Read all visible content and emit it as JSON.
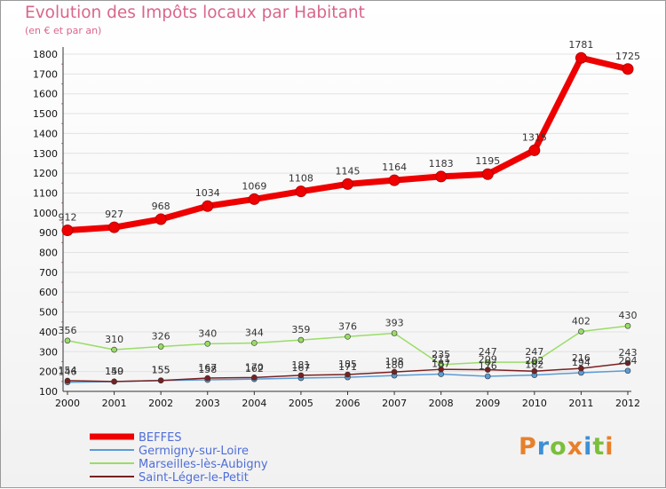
{
  "title": "Evolution des Impôts locaux par Habitant",
  "subtitle": "(en € et par an)",
  "logo": {
    "text": "Proxiti",
    "colors": [
      "#e8802a",
      "#3d8fd6",
      "#7bbf3a",
      "#e8802a",
      "#3d8fd6",
      "#7bbf3a",
      "#e8802a"
    ]
  },
  "chart_data": {
    "type": "line",
    "categories": [
      "2000",
      "2001",
      "2002",
      "2003",
      "2004",
      "2005",
      "2006",
      "2007",
      "2008",
      "2009",
      "2010",
      "2011",
      "2012"
    ],
    "yticks": [
      "100",
      "200",
      "300",
      "400",
      "500",
      "600",
      "700",
      "800",
      "900",
      "1000",
      "1100",
      "1200",
      "1300",
      "1400",
      "1500",
      "1600",
      "1700",
      "1800"
    ],
    "ylim": [
      100,
      1800
    ],
    "xlabel": "",
    "ylabel": "",
    "series": [
      {
        "name": "BEFFES",
        "color": "#ee0000",
        "width": 7,
        "marker": 6,
        "values": [
          912,
          927,
          968,
          1034,
          1069,
          1108,
          1145,
          1164,
          1183,
          1195,
          1315,
          1781,
          1725
        ],
        "labels": [
          "912",
          "927",
          "968",
          "1034",
          "1069",
          "1108",
          "1145",
          "1164",
          "1183",
          "1195",
          "1315",
          "1781",
          "1725"
        ]
      },
      {
        "name": "Germigny-sur-Loire",
        "color": "#5b9bd5",
        "width": 1.5,
        "marker": 3,
        "values": [
          146,
          149,
          155,
          158,
          162,
          167,
          171,
          180,
          187,
          176,
          182,
          194,
          204
        ],
        "labels": [
          "146",
          "149",
          "155",
          "158",
          "162",
          "167",
          "171",
          "180",
          "187",
          "176",
          "182",
          "194",
          "204"
        ]
      },
      {
        "name": "Marseilles-lès-Aubigny",
        "color": "#99dd66",
        "width": 1.5,
        "marker": 3,
        "values": [
          356,
          310,
          326,
          340,
          344,
          359,
          376,
          393,
          235,
          247,
          247,
          402,
          430
        ],
        "labels": [
          "356",
          "310",
          "326",
          "340",
          "344",
          "359",
          "376",
          "393",
          "235",
          "247",
          "247",
          "402",
          "430"
        ]
      },
      {
        "name": "Saint-Léger-le-Petit",
        "color": "#7a2020",
        "width": 1.5,
        "marker": 3,
        "values": [
          154,
          150,
          155,
          167,
          170,
          181,
          185,
          198,
          211,
          209,
          202,
          216,
          243
        ],
        "labels": [
          "154",
          "150",
          "155",
          "167",
          "170",
          "181",
          "185",
          "198",
          "211",
          "209",
          "202",
          "216",
          "243"
        ]
      }
    ]
  }
}
